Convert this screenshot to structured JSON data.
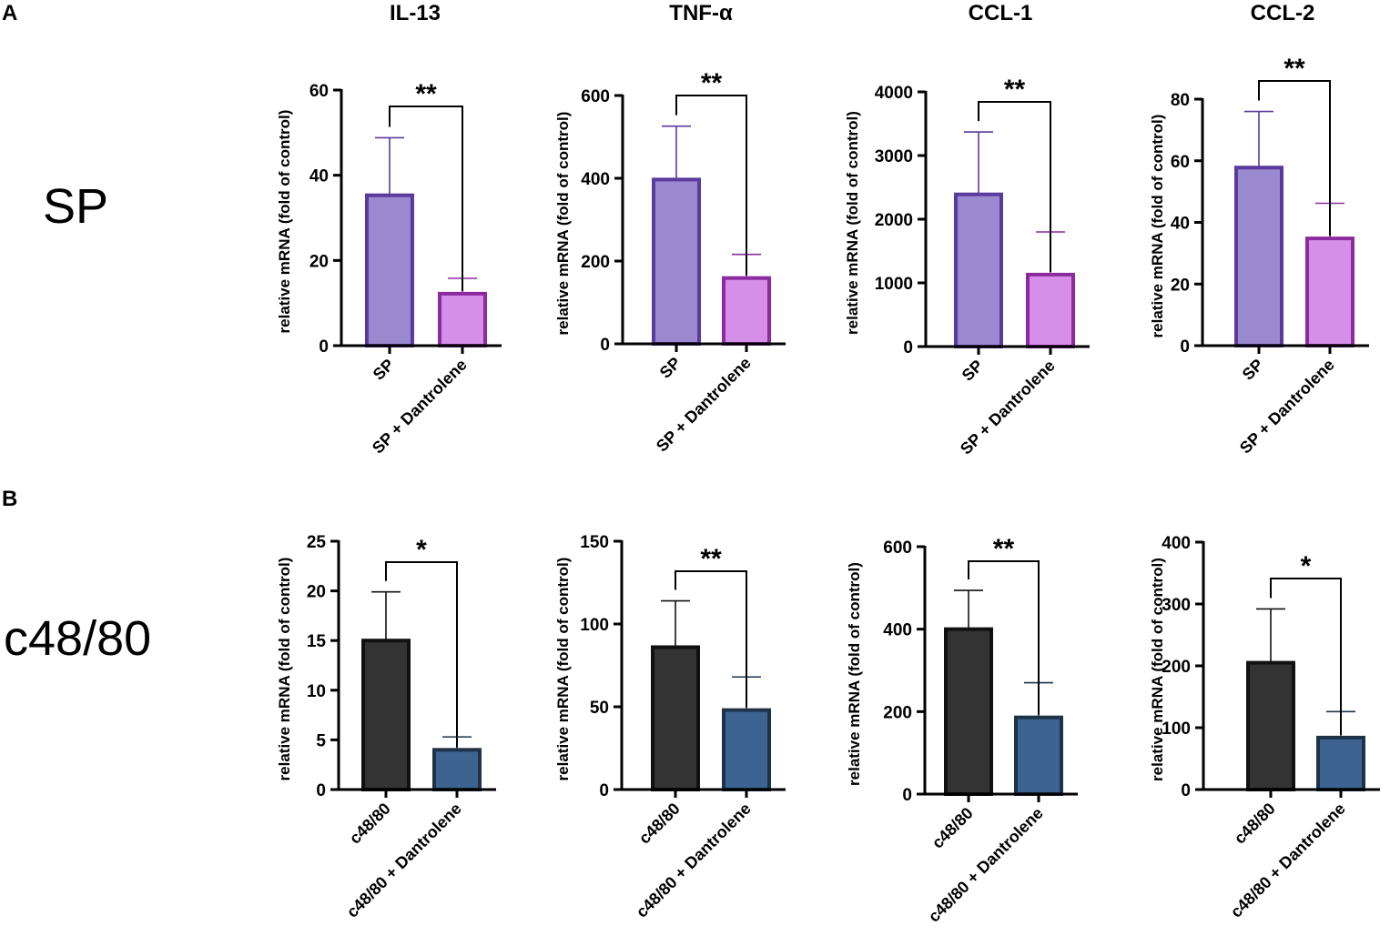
{
  "panels": {
    "A": {
      "letter": "A",
      "row_label": "SP"
    },
    "B": {
      "letter": "B",
      "row_label": "c48/80"
    }
  },
  "chart_data": [
    {
      "type": "bar",
      "panel": "A",
      "title": "IL-13",
      "ylabel": "relative mRNA (fold of control)",
      "categories": [
        "SP",
        "SP + Dantrolene"
      ],
      "values": [
        35.3,
        12.2
      ],
      "errors": [
        13.5,
        3.6
      ],
      "ylim": [
        0,
        60
      ],
      "yticks": [
        0,
        20,
        40,
        60
      ],
      "significance": "**",
      "colors": {
        "fill": [
          "#9b89d0",
          "#d68fe8"
        ],
        "edge": [
          "#5a3a9c",
          "#8c2b9e"
        ]
      }
    },
    {
      "type": "bar",
      "panel": "A",
      "title": "TNF-α",
      "ylabel": "relative mRNA (fold of control)",
      "categories": [
        "SP",
        "SP + Dantrolene"
      ],
      "values": [
        397,
        159
      ],
      "errors": [
        129,
        57
      ],
      "ylim": [
        0,
        600
      ],
      "yticks": [
        0,
        200,
        400,
        600
      ],
      "significance": "**",
      "colors": {
        "fill": [
          "#9b89d0",
          "#d68fe8"
        ],
        "edge": [
          "#5a3a9c",
          "#8c2b9e"
        ]
      }
    },
    {
      "type": "bar",
      "panel": "A",
      "title": "CCL-1",
      "ylabel": "relative mRNA (fold of control)",
      "categories": [
        "SP",
        "SP + Dantrolene"
      ],
      "values": [
        2390,
        1130
      ],
      "errors": [
        980,
        670
      ],
      "ylim": [
        0,
        4000
      ],
      "yticks": [
        0,
        1000,
        2000,
        3000,
        4000
      ],
      "significance": "**",
      "colors": {
        "fill": [
          "#9b89d0",
          "#d68fe8"
        ],
        "edge": [
          "#5a3a9c",
          "#8c2b9e"
        ]
      }
    },
    {
      "type": "bar",
      "panel": "A",
      "title": "CCL-2",
      "ylabel": "relative mRNA (fold of control)",
      "categories": [
        "SP",
        "SP + Dantrolene"
      ],
      "values": [
        57.8,
        34.8
      ],
      "errors": [
        18.2,
        11.4
      ],
      "ylim": [
        0,
        80
      ],
      "yticks": [
        0,
        20,
        40,
        60,
        80
      ],
      "significance": "**",
      "colors": {
        "fill": [
          "#9b89d0",
          "#d68fe8"
        ],
        "edge": [
          "#5a3a9c",
          "#8c2b9e"
        ]
      }
    },
    {
      "type": "bar",
      "panel": "B",
      "title": "",
      "ylabel": "relative mRNA (fold of control)",
      "categories": [
        "c48/80",
        "c48/80 + Dantrolene"
      ],
      "values": [
        15.0,
        4.0
      ],
      "errors": [
        4.9,
        1.3
      ],
      "ylim": [
        0,
        25
      ],
      "yticks": [
        0,
        5,
        10,
        15,
        20,
        25
      ],
      "significance": "*",
      "colors": {
        "fill": [
          "#333333",
          "#3d6490"
        ],
        "edge": [
          "#111111",
          "#1e3248"
        ]
      }
    },
    {
      "type": "bar",
      "panel": "B",
      "title": "",
      "ylabel": "relative mRNA (fold of control)",
      "categories": [
        "c48/80",
        "c48/80 + Dantrolene"
      ],
      "values": [
        86,
        48
      ],
      "errors": [
        28,
        20
      ],
      "ylim": [
        0,
        150
      ],
      "yticks": [
        0,
        50,
        100,
        150
      ],
      "significance": "**",
      "colors": {
        "fill": [
          "#333333",
          "#3d6490"
        ],
        "edge": [
          "#111111",
          "#1e3248"
        ]
      }
    },
    {
      "type": "bar",
      "panel": "B",
      "title": "",
      "ylabel": "relative mRNA (fold of control)",
      "categories": [
        "c48/80",
        "c48/80 + Dantrolene"
      ],
      "values": [
        400,
        186
      ],
      "errors": [
        94,
        84
      ],
      "ylim": [
        0,
        600
      ],
      "yticks": [
        0,
        200,
        400,
        600
      ],
      "significance": "**",
      "colors": {
        "fill": [
          "#333333",
          "#3d6490"
        ],
        "edge": [
          "#111111",
          "#1e3248"
        ]
      }
    },
    {
      "type": "bar",
      "panel": "B",
      "title": "",
      "ylabel": "relative mRNA (fold of control)",
      "categories": [
        "c48/80",
        "c48/80 + Dantrolene"
      ],
      "values": [
        205,
        84
      ],
      "errors": [
        87,
        42
      ],
      "ylim": [
        0,
        400
      ],
      "yticks": [
        0,
        100,
        200,
        300,
        400
      ],
      "significance": "*",
      "colors": {
        "fill": [
          "#333333",
          "#3d6490"
        ],
        "edge": [
          "#111111",
          "#1e3248"
        ]
      }
    }
  ]
}
